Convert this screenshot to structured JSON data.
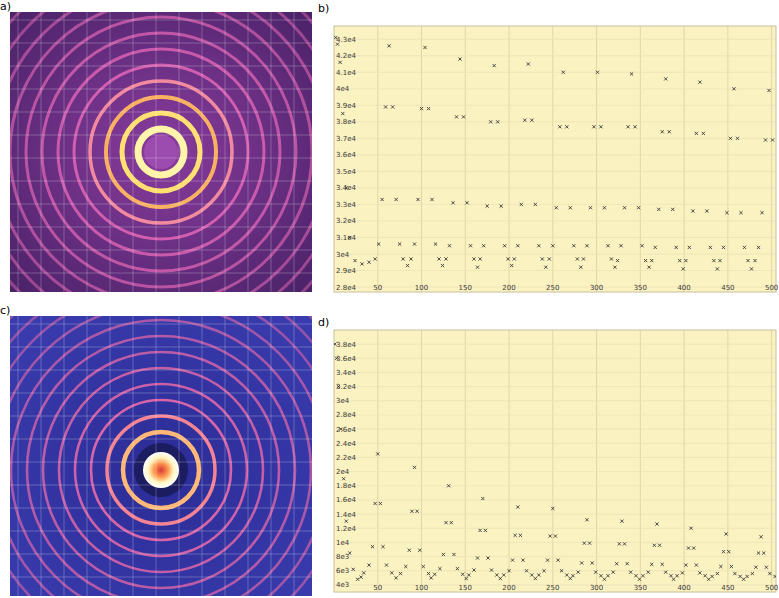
{
  "chart_data": [
    {
      "type": "image",
      "title": "a)"
    },
    {
      "type": "scatter",
      "title": "b)",
      "x": [
        2,
        4,
        7,
        10,
        14,
        18,
        24,
        32,
        40,
        47,
        51,
        55,
        59,
        63,
        67,
        71,
        75,
        79,
        84,
        88,
        92,
        96,
        100,
        104,
        108,
        112,
        116,
        120,
        124,
        128,
        132,
        136,
        140,
        144,
        148,
        152,
        156,
        160,
        164,
        167,
        171,
        175,
        179,
        183,
        187,
        191,
        195,
        199,
        203,
        206,
        210,
        214,
        218,
        222,
        226,
        230,
        234,
        238,
        242,
        246,
        250,
        254,
        258,
        262,
        266,
        270,
        274,
        278,
        282,
        285,
        289,
        293,
        297,
        301,
        305,
        309,
        313,
        317,
        321,
        324,
        328,
        332,
        336,
        340,
        344,
        348,
        352,
        356,
        360,
        363,
        367,
        371,
        375,
        379,
        383,
        387,
        391,
        395,
        399,
        402,
        406,
        410,
        414,
        418,
        422,
        426,
        430,
        434,
        438,
        441,
        445,
        449,
        453,
        457,
        461,
        465,
        469,
        473,
        477,
        481,
        485,
        489,
        493,
        497,
        501
      ],
      "series": [
        {
          "color": "#3a3a3a",
          "marker": "x",
          "values": [
            43100,
            42700,
            41600,
            38500,
            34000,
            31000,
            29600,
            29400,
            29500,
            29700,
            30600,
            33300,
            38900,
            42600,
            38900,
            33300,
            30600,
            29700,
            29300,
            29700,
            30600,
            33300,
            38800,
            42500,
            38800,
            33300,
            30600,
            29700,
            29300,
            29700,
            30500,
            33100,
            38300,
            41800,
            38300,
            33100,
            30500,
            29700,
            29200,
            29700,
            30500,
            32900,
            38000,
            41400,
            38000,
            32900,
            30500,
            29700,
            29300,
            29700,
            30500,
            33000,
            38100,
            41500,
            38100,
            33000,
            30500,
            29700,
            29200,
            29700,
            30500,
            32800,
            37700,
            41000,
            37700,
            32800,
            30500,
            29700,
            29200,
            29700,
            30500,
            32800,
            37700,
            41000,
            37700,
            32800,
            30500,
            29700,
            29200,
            29600,
            30500,
            32800,
            37700,
            40900,
            37700,
            32800,
            30500,
            29600,
            29200,
            29600,
            30400,
            32700,
            37400,
            40600,
            37400,
            32700,
            30400,
            29600,
            29100,
            29600,
            30400,
            32600,
            37300,
            40400,
            37300,
            32600,
            30400,
            29600,
            29100,
            29600,
            30400,
            32500,
            37000,
            40000,
            37000,
            32500,
            30400,
            29600,
            29100,
            29600,
            30400,
            32500,
            36900,
            39900,
            36900
          ]
        }
      ],
      "xlim": [
        0,
        505
      ],
      "ylim": [
        27700,
        43800
      ],
      "xticks": [
        50,
        100,
        150,
        200,
        250,
        300,
        350,
        400,
        450,
        500
      ],
      "yticks": [
        {
          "value": 28000,
          "label": "2.8e4"
        },
        {
          "value": 29000,
          "label": "2.9e4"
        },
        {
          "value": 30000,
          "label": "3e4"
        },
        {
          "value": 31000,
          "label": "3.1e4"
        },
        {
          "value": 32000,
          "label": "3.2e4"
        },
        {
          "value": 33000,
          "label": "3.3e4"
        },
        {
          "value": 34000,
          "label": "3.4e4"
        },
        {
          "value": 35000,
          "label": "3.5e4"
        },
        {
          "value": 36000,
          "label": "3.6e4"
        },
        {
          "value": 37000,
          "label": "3.7e4"
        },
        {
          "value": 38000,
          "label": "3.8e4"
        },
        {
          "value": 39000,
          "label": "3.9e4"
        },
        {
          "value": 40000,
          "label": "4e4"
        },
        {
          "value": 41000,
          "label": "4.1e4"
        },
        {
          "value": 42000,
          "label": "4.2e4"
        },
        {
          "value": 43000,
          "label": "4.3e4"
        }
      ],
      "grid": true
    },
    {
      "type": "image",
      "title": "c)"
    },
    {
      "type": "scatter",
      "title": "d)",
      "x": [
        1,
        3,
        5,
        8,
        11,
        14,
        18,
        22,
        27,
        31,
        34,
        40,
        44,
        47,
        50,
        53,
        56,
        60,
        66,
        71,
        76,
        82,
        86,
        89,
        92,
        95,
        98,
        102,
        108,
        111,
        115,
        121,
        125,
        128,
        131,
        134,
        137,
        141,
        147,
        151,
        154,
        160,
        164,
        167,
        170,
        173,
        176,
        180,
        186,
        190,
        194,
        200,
        204,
        207,
        210,
        213,
        216,
        220,
        226,
        230,
        234,
        240,
        244,
        247,
        250,
        253,
        256,
        260,
        266,
        270,
        273,
        279,
        283,
        286,
        289,
        292,
        295,
        299,
        305,
        309,
        313,
        319,
        323,
        326,
        329,
        332,
        335,
        339,
        345,
        349,
        353,
        359,
        363,
        366,
        369,
        372,
        375,
        379,
        385,
        388,
        392,
        398,
        402,
        405,
        408,
        411,
        414,
        418,
        424,
        428,
        432,
        438,
        442,
        445,
        448,
        451,
        454,
        458,
        464,
        468,
        472,
        478,
        482,
        485,
        488,
        491,
        494,
        498,
        504
      ],
      "series": [
        {
          "color": "#3a3a3a",
          "marker": "x",
          "values": [
            38000,
            36000,
            32000,
            26000,
            19000,
            13000,
            8500,
            6200,
            4800,
            5100,
            5700,
            6800,
            9400,
            15500,
            22500,
            15500,
            9400,
            6800,
            5700,
            5000,
            5600,
            6600,
            8900,
            14400,
            20600,
            14400,
            8900,
            6600,
            5600,
            5000,
            5500,
            6300,
            8300,
            12800,
            18000,
            12800,
            8300,
            6300,
            5500,
            4900,
            5400,
            6100,
            7800,
            11700,
            16200,
            11700,
            7800,
            6100,
            5400,
            4900,
            5400,
            6000,
            7500,
            11000,
            15000,
            11000,
            7500,
            6000,
            5400,
            4900,
            5400,
            6000,
            7500,
            10900,
            14800,
            10900,
            7500,
            6000,
            5400,
            4900,
            5300,
            5800,
            7100,
            9900,
            13200,
            9900,
            7100,
            5800,
            5300,
            4800,
            5300,
            5800,
            7000,
            9800,
            13000,
            9800,
            7000,
            5800,
            5300,
            4800,
            5300,
            5800,
            6900,
            9600,
            12600,
            9600,
            6900,
            5800,
            5300,
            4800,
            5300,
            5700,
            6800,
            9200,
            12000,
            9200,
            6800,
            5700,
            5300,
            4800,
            5200,
            5600,
            6600,
            8700,
            11200,
            8700,
            6600,
            5600,
            5200,
            4800,
            5200,
            5600,
            6500,
            8500,
            10800,
            8500,
            6500,
            5600,
            5200
          ]
        }
      ],
      "xlim": [
        0,
        505
      ],
      "ylim": [
        3000,
        40000
      ],
      "xticks": [
        50,
        100,
        150,
        200,
        250,
        300,
        350,
        400,
        450,
        500
      ],
      "yticks": [
        {
          "value": 4000,
          "label": "4e3"
        },
        {
          "value": 6000,
          "label": "6e3"
        },
        {
          "value": 8000,
          "label": "8e3"
        },
        {
          "value": 10000,
          "label": "1e4"
        },
        {
          "value": 12000,
          "label": "1.2e4"
        },
        {
          "value": 14000,
          "label": "1.4e4"
        },
        {
          "value": 16000,
          "label": "1.6e4"
        },
        {
          "value": 18000,
          "label": "1.8e4"
        },
        {
          "value": 20000,
          "label": "2e4"
        },
        {
          "value": 22000,
          "label": "2.2e4"
        },
        {
          "value": 24000,
          "label": "2.4e4"
        },
        {
          "value": 26000,
          "label": "2.6e4"
        },
        {
          "value": 28000,
          "label": "2.8e4"
        },
        {
          "value": 30000,
          "label": "3e4"
        },
        {
          "value": 32000,
          "label": "3.2e4"
        },
        {
          "value": 34000,
          "label": "3.4e4"
        },
        {
          "value": 36000,
          "label": "3.6e4"
        },
        {
          "value": 38000,
          "label": "3.8e4"
        }
      ],
      "grid": true
    }
  ]
}
